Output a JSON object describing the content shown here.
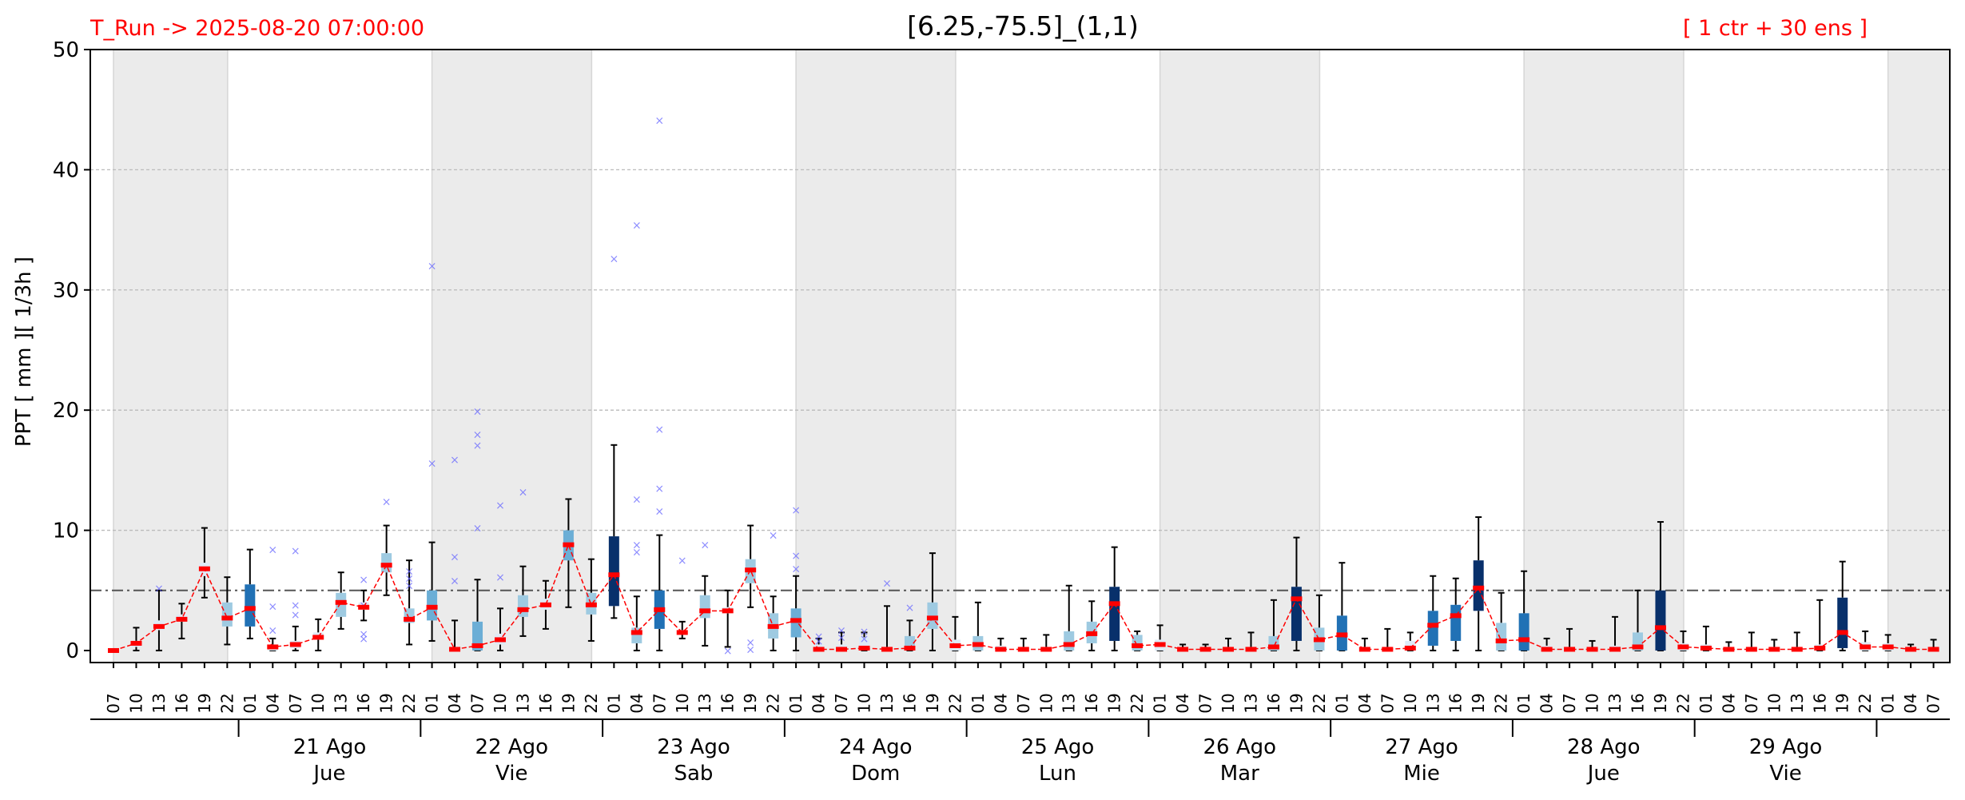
{
  "header": {
    "run_label": "T_Run -> 2025-08-20  07:00:00",
    "title": "[6.25,-75.5]_(1,1)",
    "members_label": "[ 1 ctr + 30 ens ]"
  },
  "colors": {
    "median": "#ff0000",
    "median_line": "#ff0000",
    "outlier": "#6666ff",
    "whisker": "#000000",
    "night_shade": "#ebebeb",
    "threshold": "#555555",
    "grid": "#bbbbbb",
    "box_scale": [
      "#deebf7",
      "#9ecae1",
      "#6baed6",
      "#2171b5",
      "#08306b"
    ]
  },
  "chart_data": {
    "type": "box",
    "title": "[6.25,-75.5]_(1,1)",
    "ylabel": "PPT  [ mm ][ 1/3h ]",
    "ylim": [
      -1,
      50
    ],
    "yticks": [
      0,
      10,
      20,
      30,
      40,
      50
    ],
    "threshold": 5,
    "grid": true,
    "step_hours": 3,
    "hour_ticks": [
      "07",
      "10",
      "13",
      "16",
      "19",
      "22",
      "01",
      "04",
      "07",
      "10",
      "13",
      "16",
      "19",
      "22",
      "01",
      "04",
      "07",
      "10",
      "13",
      "16",
      "19",
      "22",
      "01",
      "04",
      "07",
      "10",
      "13",
      "16",
      "19",
      "22",
      "01",
      "04",
      "07",
      "10",
      "13",
      "16",
      "19",
      "22",
      "01",
      "04",
      "07",
      "10",
      "13",
      "16",
      "19",
      "22",
      "01",
      "04",
      "07",
      "10",
      "13",
      "16",
      "19",
      "22",
      "01",
      "04",
      "07",
      "10",
      "13",
      "16",
      "19",
      "22",
      "01",
      "04",
      "07",
      "10",
      "13",
      "16",
      "19",
      "22",
      "01",
      "04",
      "07",
      "10",
      "13",
      "16",
      "19",
      "22",
      "01",
      "04",
      "07"
    ],
    "day_groups": [
      {
        "date": "21 Ago",
        "weekday": "Jue"
      },
      {
        "date": "22 Ago",
        "weekday": "Vie"
      },
      {
        "date": "23 Ago",
        "weekday": "Sab"
      },
      {
        "date": "24 Ago",
        "weekday": "Dom"
      },
      {
        "date": "25 Ago",
        "weekday": "Lun"
      },
      {
        "date": "26 Ago",
        "weekday": "Mar"
      },
      {
        "date": "27 Ago",
        "weekday": "Mie"
      },
      {
        "date": "28 Ago",
        "weekday": "Jue"
      },
      {
        "date": "29 Ago",
        "weekday": "Vie"
      }
    ],
    "night_spans": [
      [
        0,
        5
      ],
      [
        14,
        21
      ],
      [
        30,
        37
      ],
      [
        46,
        53
      ],
      [
        62,
        69
      ],
      [
        78,
        81
      ]
    ],
    "median": [
      0.0,
      0.6,
      2.0,
      2.6,
      6.8,
      2.7,
      3.5,
      0.3,
      0.5,
      1.1,
      4.0,
      3.6,
      7.1,
      2.6,
      3.6,
      0.1,
      0.4,
      0.9,
      3.4,
      3.8,
      8.8,
      3.8,
      6.3,
      1.5,
      3.4,
      1.5,
      3.3,
      3.3,
      6.7,
      2.0,
      2.5,
      0.1,
      0.1,
      0.2,
      0.1,
      0.2,
      2.7,
      0.4,
      0.5,
      0.1,
      0.1,
      0.1,
      0.5,
      1.4,
      3.9,
      0.4,
      0.5,
      0.1,
      0.1,
      0.1,
      0.1,
      0.3,
      4.3,
      0.9,
      1.3,
      0.1,
      0.1,
      0.2,
      2.1,
      2.9,
      5.2,
      0.8,
      0.9,
      0.1,
      0.1,
      0.1,
      0.1,
      0.3,
      1.9,
      0.3,
      0.2,
      0.1,
      0.1,
      0.1,
      0.1,
      0.2,
      1.5,
      0.3,
      0.3,
      0.1,
      0.1
    ],
    "q1": [
      0,
      0.3,
      1.7,
      2.4,
      6.2,
      2.0,
      2.0,
      0,
      0.2,
      0.9,
      2.8,
      3.4,
      6.5,
      2.3,
      2.5,
      0,
      0,
      0.5,
      2.8,
      3.4,
      7.5,
      3.0,
      3.7,
      0.6,
      1.8,
      1.4,
      2.7,
      3.1,
      5.6,
      1.0,
      1.1,
      0,
      0,
      0,
      0,
      0,
      1.8,
      0,
      0,
      0,
      0,
      0,
      0,
      0.6,
      0.8,
      0,
      0,
      0,
      0,
      0,
      0,
      0,
      0.8,
      0,
      0,
      0,
      0,
      0,
      0.4,
      0.8,
      3.3,
      0,
      0,
      0,
      0,
      0,
      0,
      0,
      0,
      0,
      0,
      0,
      0,
      0,
      0,
      0,
      0.2,
      0,
      0,
      0,
      0
    ],
    "q3": [
      0,
      0.8,
      2.5,
      3.0,
      7.3,
      4.0,
      5.5,
      0.5,
      0.8,
      1.5,
      4.8,
      4.0,
      8.1,
      3.5,
      5.0,
      0.3,
      2.4,
      1.4,
      4.6,
      4.3,
      10.0,
      4.8,
      9.5,
      1.9,
      5.0,
      1.7,
      4.6,
      3.6,
      7.6,
      3.1,
      3.5,
      0.5,
      0.5,
      1.1,
      0.3,
      1.2,
      4.0,
      0.9,
      1.2,
      0.4,
      0.3,
      0.3,
      1.6,
      2.4,
      5.3,
      1.3,
      0.9,
      0.2,
      0.2,
      0.3,
      0.3,
      1.2,
      5.3,
      1.9,
      2.9,
      0.3,
      0.3,
      0.8,
      3.3,
      3.8,
      7.5,
      2.3,
      3.1,
      0.4,
      0.3,
      0.2,
      0.4,
      1.5,
      5.0,
      0.6,
      0.5,
      0.3,
      0.3,
      0.3,
      0.3,
      0.5,
      4.4,
      0.7,
      0.6,
      0.2,
      0.2
    ],
    "wlow": [
      0,
      0,
      0,
      1.0,
      4.4,
      0.5,
      1.0,
      0,
      0,
      0,
      1.8,
      2.5,
      4.6,
      0.5,
      0.8,
      0,
      0,
      0,
      1.2,
      1.8,
      3.6,
      0.8,
      2.7,
      0,
      0,
      1.0,
      0.4,
      0.3,
      3.6,
      0,
      0,
      0,
      0,
      0,
      0,
      0,
      0,
      0,
      0,
      0,
      0,
      0,
      0,
      0,
      0,
      0,
      0,
      0,
      0,
      0,
      0,
      0,
      0,
      0,
      0,
      0,
      0,
      0,
      0,
      0,
      0,
      0,
      0,
      0,
      0,
      0,
      0,
      0,
      0,
      0,
      0,
      0,
      0,
      0,
      0,
      0,
      0,
      0,
      0,
      0,
      0
    ],
    "whigh": [
      0,
      1.9,
      5.0,
      3.9,
      10.2,
      6.1,
      8.4,
      1.0,
      2.0,
      2.6,
      6.5,
      5.0,
      10.4,
      7.5,
      9.0,
      2.5,
      5.9,
      3.5,
      7.0,
      5.8,
      12.6,
      7.6,
      17.1,
      4.5,
      9.6,
      2.4,
      6.2,
      5.0,
      10.4,
      4.5,
      6.2,
      1.0,
      1.5,
      1.5,
      3.7,
      2.5,
      8.1,
      2.8,
      4.0,
      1.0,
      1.0,
      1.3,
      5.4,
      4.1,
      8.6,
      1.6,
      2.1,
      0.5,
      0.5,
      1.0,
      1.5,
      4.2,
      9.4,
      4.6,
      7.3,
      1.0,
      1.8,
      1.5,
      6.2,
      6.0,
      11.1,
      4.8,
      6.6,
      1.0,
      1.8,
      0.8,
      2.8,
      5.0,
      10.7,
      1.6,
      2.0,
      0.7,
      1.5,
      0.9,
      1.5,
      4.2,
      7.4,
      1.6,
      1.3,
      0.5,
      0.9
    ],
    "outliers": [
      [],
      [],
      [
        5.2
      ],
      [],
      [],
      [],
      [],
      [
        8.4,
        3.7,
        1.7
      ],
      [
        8.3,
        3.8,
        3.0
      ],
      [],
      [],
      [
        5.9,
        3.8,
        1.4,
        1.0
      ],
      [
        12.4
      ],
      [
        6.6,
        6.0,
        5.4
      ],
      [
        32.0,
        15.6
      ],
      [
        15.9,
        7.8,
        5.8
      ],
      [
        19.9,
        18.0,
        17.1,
        10.2
      ],
      [
        12.1,
        6.1
      ],
      [
        13.2
      ],
      [],
      [],
      [],
      [
        32.6
      ],
      [
        35.4,
        12.6,
        8.8,
        8.2
      ],
      [
        44.1,
        18.4,
        13.5,
        11.6
      ],
      [
        7.5
      ],
      [
        8.8
      ],
      [
        0
      ],
      [
        0.7,
        0.1
      ],
      [
        9.6
      ],
      [
        11.7,
        7.9,
        6.8
      ],
      [
        1.2,
        0.8
      ],
      [
        1.7,
        1.1
      ],
      [
        1.6,
        1.0
      ],
      [
        5.6
      ],
      [
        3.6
      ],
      [],
      [],
      [],
      [],
      [],
      [],
      [],
      [],
      [],
      [],
      [],
      [],
      [],
      [],
      [],
      [],
      [],
      [],
      [],
      [],
      [],
      [],
      [],
      [],
      [],
      [],
      [],
      [],
      [],
      [],
      [],
      [],
      [],
      [],
      [],
      [],
      [],
      [],
      [],
      [],
      [],
      [],
      [],
      [],
      []
    ]
  }
}
